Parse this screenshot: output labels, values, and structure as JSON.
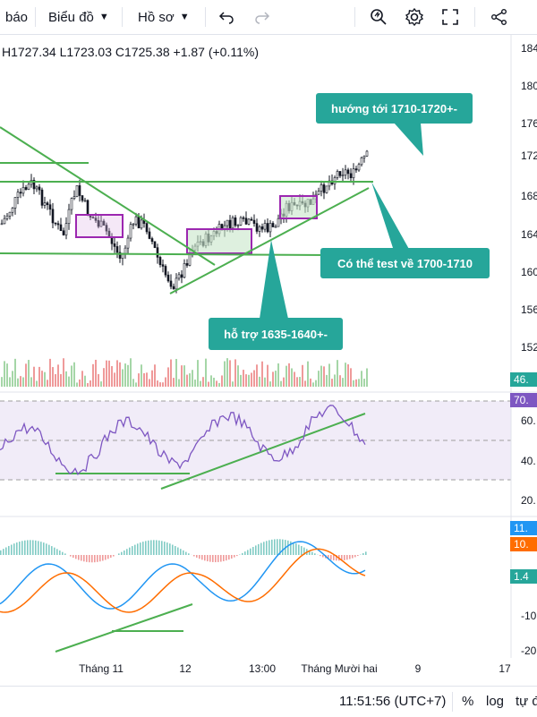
{
  "toolbar": {
    "partial_label": "báo",
    "chart_type_label": "Biểu đồ",
    "profile_label": "Hồ sơ",
    "undo_icon": "undo-icon",
    "redo_icon": "redo-icon",
    "search_icon": "search-icon",
    "settings_icon": "gear-icon",
    "fullscreen_icon": "fullscreen-icon",
    "share_icon": "share-icon"
  },
  "ohlc": {
    "high": "H1727.34",
    "low": "L1723.03",
    "close": "C1725.38",
    "change": "+1.87 (+0.11%)"
  },
  "price_axis": [
    "184",
    "180",
    "176",
    "172",
    "168",
    "164",
    "160",
    "156",
    "152"
  ],
  "rsi_axis": [
    "60.",
    "40.",
    "20."
  ],
  "macd_axis": [
    "-10",
    "-20"
  ],
  "badges": {
    "volume": {
      "text": "46.",
      "color": "#26a69a"
    },
    "rsi": {
      "text": "70.",
      "color": "#7e57c2"
    },
    "macd": {
      "text": "11.",
      "color": "#2196f3"
    },
    "signal": {
      "text": "10.",
      "color": "#ff6d00"
    },
    "histogram": {
      "text": "1.4",
      "color": "#26a69a"
    }
  },
  "callouts": {
    "target": "hướng tới 1710-1720+-",
    "test": "Có thể test về 1700-1710",
    "support": "hỗ trợ 1635-1640+-"
  },
  "time_axis": [
    "Tháng 11",
    "12",
    "13:00",
    "Tháng Mười hai",
    "9",
    "17"
  ],
  "status": {
    "time": "11:51:56 (UTC+7)",
    "percent": "%",
    "log": "log",
    "auto": "tự đ"
  },
  "colors": {
    "up": "#26a69a",
    "down": "#ef5350",
    "rsi": "#7e57c2",
    "trendline": "#4caf50",
    "macd": "#2196f3",
    "signal": "#ff6d00",
    "callout": "#26a69a"
  }
}
